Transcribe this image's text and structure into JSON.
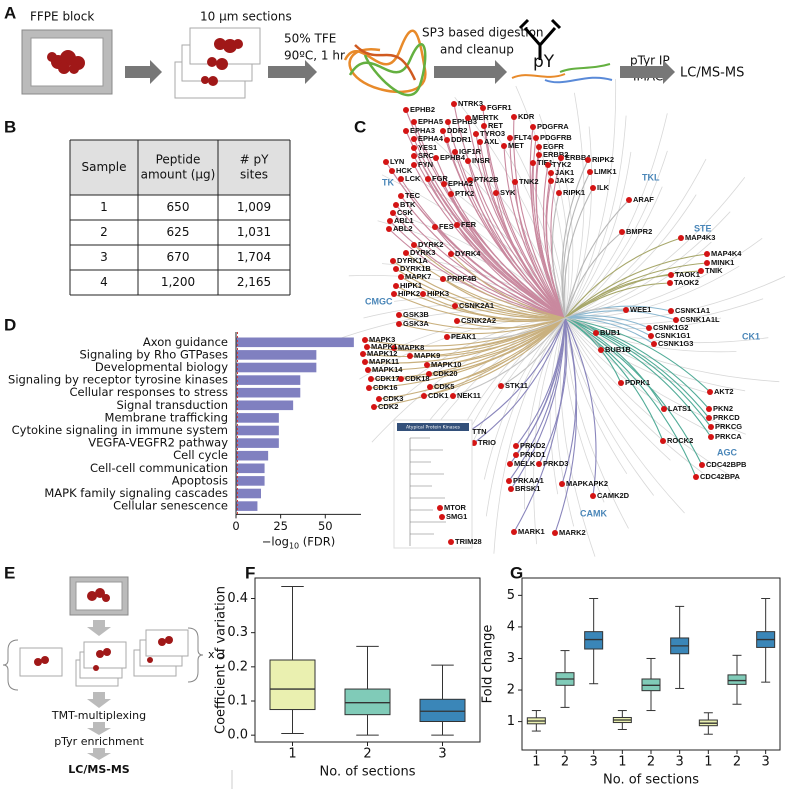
{
  "panel_labels": [
    "A",
    "B",
    "C",
    "D",
    "E",
    "F",
    "G"
  ],
  "workflow": {
    "steps": [
      "FFPE block",
      "10 µm sections",
      "50% TFE",
      "90ºC, 1 hr",
      "SP3 based digestion",
      "and cleanup",
      "pY",
      "pTyr IP",
      "IMAC",
      "LC/MS-MS"
    ]
  },
  "table": {
    "header": [
      [
        "Sample"
      ],
      [
        "Peptide",
        "amount (µg)"
      ],
      [
        "# pY",
        "sites"
      ]
    ],
    "rows": [
      [
        "1",
        "650",
        "1,009"
      ],
      [
        "2",
        "625",
        "1,031"
      ],
      [
        "3",
        "670",
        "1,704"
      ],
      [
        "4",
        "1,200",
        "2,165"
      ]
    ]
  },
  "kinome": {
    "groups": [
      {
        "name": "TK",
        "kinases": [
          "EPHB2",
          "EPHA5",
          "EPHB3",
          "EPHA3",
          "DDR2",
          "NTRK3",
          "FGFR1",
          "KDR",
          "MERTK",
          "RET",
          "PDGFRA",
          "TYRO3",
          "FLT4",
          "PDGFRB",
          "EPHA4",
          "DDR1",
          "AXL",
          "MET",
          "EGFR",
          "YES1",
          "IGF1R",
          "ERBB2",
          "SRC",
          "ERBB4",
          "EPHB4",
          "INSR",
          "TIE1",
          "TYK2",
          "LYN",
          "FYN",
          "HCK",
          "JAK1",
          "LCK",
          "FGR",
          "PTK2B",
          "TNK2",
          "JAK2",
          "EPHA2",
          "SYK",
          "PTK2",
          "TEC",
          "BTK",
          "CSK",
          "ABL1",
          "ABL2",
          "FES",
          "FER"
        ]
      },
      {
        "name": "TKL",
        "kinases": [
          "RIPK2",
          "LIMK1",
          "ILK",
          "ARAF",
          "RIPK1",
          "BMPR2"
        ]
      },
      {
        "name": "STE",
        "kinases": [
          "MAP4K3",
          "MAP4K4",
          "MINK1",
          "TNIK",
          "TAOK1",
          "TAOK2"
        ]
      },
      {
        "name": "CK1",
        "kinases": [
          "CSNK1A1",
          "CSNK1A1L",
          "CSNK1G2",
          "CSNK1G1",
          "CSNK1G3"
        ]
      },
      {
        "name": "AGC",
        "kinases": [
          "PDPK1",
          "AKT2",
          "LATS1",
          "PKN2",
          "PRKCD",
          "PRKCG",
          "PRKCA",
          "ROCK2",
          "CDC42BPB",
          "CDC42BPA"
        ]
      },
      {
        "name": "CAMK",
        "kinases": [
          "TTN",
          "TRIO",
          "PRKD2",
          "PRKD1",
          "MELK",
          "PRKD3",
          "PRKAA1",
          "BRSK1",
          "MAPKAPK2",
          "CAMK2D",
          "MARK1",
          "MARK2"
        ]
      },
      {
        "name": "CMGC",
        "kinases": [
          "DYRK2",
          "DYRK4",
          "DYRK3",
          "DYRK1A",
          "DYRK1B",
          "MAPK7",
          "PRPF4B",
          "HIPK1",
          "HIPK2",
          "HIPK3",
          "CSNK2A1",
          "GSK3B",
          "CSNK2A2",
          "GSK3A",
          "MAPK3",
          "MAPK8",
          "MAPK1",
          "MAPK12",
          "MAPK9",
          "MAPK11",
          "MAPK10",
          "MAPK14",
          "CDK20",
          "CDK17",
          "CDK18",
          "CDK16",
          "CDK5",
          "CDK3",
          "CDK1",
          "CDK2"
        ]
      }
    ],
    "other_kinases": [
      "WEE1",
      "BUB1",
      "BUB1B",
      "PEAK1",
      "NEK11",
      "STK11"
    ],
    "atypical": {
      "title": "Atypical Protein Kinases",
      "kinases": [
        "MTOR",
        "SMG1",
        "TRIM28"
      ]
    }
  },
  "schematic_e": {
    "labels": [
      "x 3",
      "TMT-multiplexing",
      "pTyr enrichment",
      "LC/MS-MS"
    ]
  },
  "chart_data": [
    {
      "type": "hbar",
      "categories": [
        "Axon guidance",
        "Signaling by Rho GTPases",
        "Developmental biology",
        "Signaling by receptor tyrosine kinases",
        "Cellular responses to stress",
        "Signal transduction",
        "Membrane trafficking",
        "Cytokine signaling in immune system",
        "VEGFA-VEGFR2 pathway",
        "Cell cycle",
        "Cell-cell communication",
        "Apoptosis",
        "MAPK family signaling cascades",
        "Cellular senescence"
      ],
      "values": [
        66,
        45,
        45,
        36,
        36,
        32,
        24,
        24,
        24,
        18,
        16,
        16,
        14,
        12
      ],
      "color": "#8080c0",
      "xlim": [
        0,
        70
      ],
      "xticks": [
        0,
        25,
        50
      ],
      "xlabel": [
        "−log",
        "10",
        " (FDR)"
      ]
    },
    {
      "type": "box",
      "categories": [
        "1",
        "2",
        "3"
      ],
      "boxes": [
        {
          "min": 0.005,
          "q1": 0.075,
          "median": 0.135,
          "q3": 0.22,
          "max": 0.435
        },
        {
          "min": 0.0,
          "q1": 0.06,
          "median": 0.095,
          "q3": 0.135,
          "max": 0.26
        },
        {
          "min": 0.0,
          "q1": 0.04,
          "median": 0.07,
          "q3": 0.105,
          "max": 0.205
        }
      ],
      "colors": [
        "#eaf0b0",
        "#80cbb8",
        "#3a86b8"
      ],
      "ylim": [
        -0.02,
        0.46
      ],
      "yticks": [
        {
          "value": 0,
          "label": "0.0"
        },
        0.1,
        0.2,
        0.3,
        0.4
      ],
      "xlabel": "No. of sections",
      "ylabel": "Coefficient of variation"
    },
    {
      "type": "box",
      "categories": [
        "1",
        "2",
        "3",
        "1",
        "2",
        "3",
        "1",
        "2",
        "3"
      ],
      "boxes": [
        {
          "min": 0.7,
          "q1": 0.93,
          "median": 1.02,
          "q3": 1.12,
          "max": 1.35
        },
        {
          "min": 1.45,
          "q1": 2.15,
          "median": 2.35,
          "q3": 2.55,
          "max": 3.25
        },
        {
          "min": 2.2,
          "q1": 3.3,
          "median": 3.6,
          "q3": 3.85,
          "max": 4.9
        },
        {
          "min": 0.75,
          "q1": 0.97,
          "median": 1.05,
          "q3": 1.13,
          "max": 1.35
        },
        {
          "min": 1.35,
          "q1": 1.98,
          "median": 2.15,
          "q3": 2.35,
          "max": 3.0
        },
        {
          "min": 2.05,
          "q1": 3.15,
          "median": 3.4,
          "q3": 3.65,
          "max": 4.65
        },
        {
          "min": 0.6,
          "q1": 0.87,
          "median": 0.95,
          "q3": 1.05,
          "max": 1.28
        },
        {
          "min": 1.55,
          "q1": 2.18,
          "median": 2.3,
          "q3": 2.48,
          "max": 3.1
        },
        {
          "min": 2.25,
          "q1": 3.35,
          "median": 3.6,
          "q3": 3.85,
          "max": 4.9
        }
      ],
      "colors": [
        "#eaf0b0",
        "#80cbb8",
        "#3a86b8",
        "#eaf0b0",
        "#80cbb8",
        "#3a86b8",
        "#eaf0b0",
        "#80cbb8",
        "#3a86b8"
      ],
      "ylim": [
        0.1,
        5.55
      ],
      "yticks": [
        1,
        2,
        3,
        4,
        5
      ],
      "xlabel": "No. of sections",
      "ylabel": "Fold change"
    }
  ]
}
